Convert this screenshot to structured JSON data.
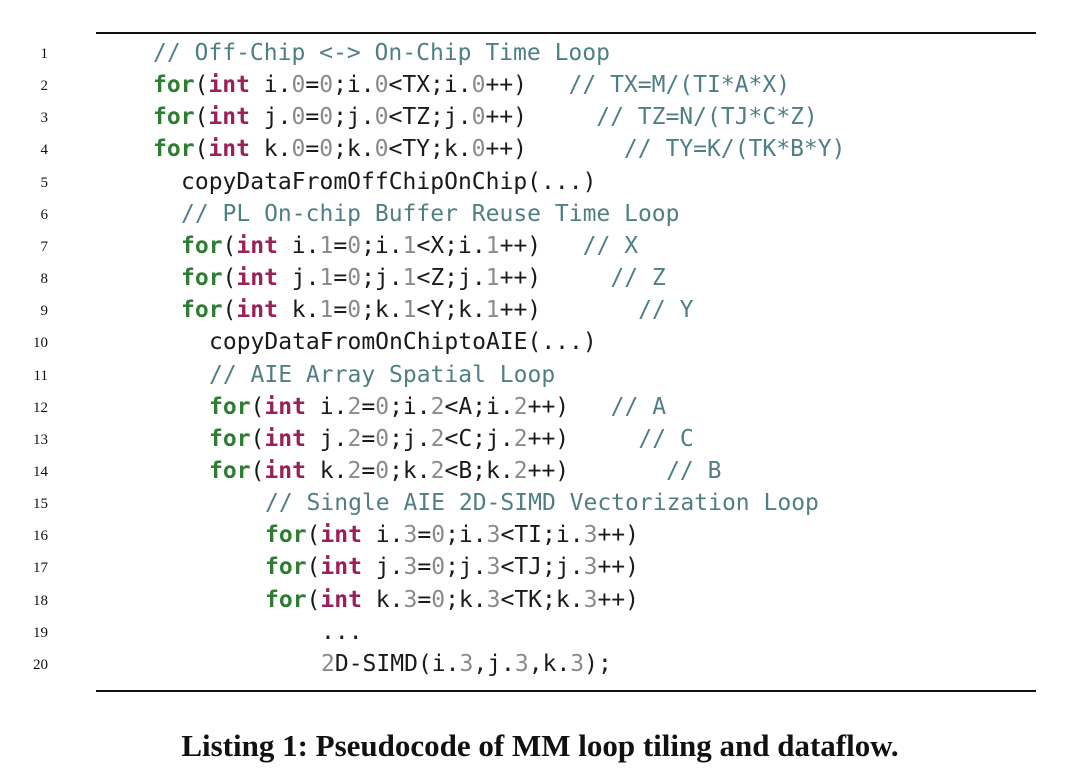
{
  "caption": "Listing 1: Pseudocode of MM loop tiling and dataflow.",
  "lines": [
    {
      "num": "1",
      "indent": 0,
      "tokens": [
        {
          "t": "// Off-Chip <-> On-Chip Time Loop",
          "c": "com"
        }
      ]
    },
    {
      "num": "2",
      "indent": 0,
      "tokens": [
        {
          "t": "for",
          "c": "kw"
        },
        {
          "t": "(",
          "c": "plain"
        },
        {
          "t": "int",
          "c": "type"
        },
        {
          "t": " i.",
          "c": "plain"
        },
        {
          "t": "0",
          "c": "num"
        },
        {
          "t": "=",
          "c": "plain"
        },
        {
          "t": "0",
          "c": "num"
        },
        {
          "t": ";i.",
          "c": "plain"
        },
        {
          "t": "0",
          "c": "num"
        },
        {
          "t": "<TX;i.",
          "c": "plain"
        },
        {
          "t": "0",
          "c": "num"
        },
        {
          "t": "++)",
          "c": "plain"
        },
        {
          "t": "   // TX=M/(TI*A*X)",
          "c": "com"
        }
      ]
    },
    {
      "num": "3",
      "indent": 0,
      "tokens": [
        {
          "t": "for",
          "c": "kw"
        },
        {
          "t": "(",
          "c": "plain"
        },
        {
          "t": "int",
          "c": "type"
        },
        {
          "t": " j.",
          "c": "plain"
        },
        {
          "t": "0",
          "c": "num"
        },
        {
          "t": "=",
          "c": "plain"
        },
        {
          "t": "0",
          "c": "num"
        },
        {
          "t": ";j.",
          "c": "plain"
        },
        {
          "t": "0",
          "c": "num"
        },
        {
          "t": "<TZ;j.",
          "c": "plain"
        },
        {
          "t": "0",
          "c": "num"
        },
        {
          "t": "++)",
          "c": "plain"
        },
        {
          "t": "     // TZ=N/(TJ*C*Z)",
          "c": "com"
        }
      ]
    },
    {
      "num": "4",
      "indent": 0,
      "tokens": [
        {
          "t": "for",
          "c": "kw"
        },
        {
          "t": "(",
          "c": "plain"
        },
        {
          "t": "int",
          "c": "type"
        },
        {
          "t": " k.",
          "c": "plain"
        },
        {
          "t": "0",
          "c": "num"
        },
        {
          "t": "=",
          "c": "plain"
        },
        {
          "t": "0",
          "c": "num"
        },
        {
          "t": ";k.",
          "c": "plain"
        },
        {
          "t": "0",
          "c": "num"
        },
        {
          "t": "<TY;k.",
          "c": "plain"
        },
        {
          "t": "0",
          "c": "num"
        },
        {
          "t": "++)",
          "c": "plain"
        },
        {
          "t": "       // TY=K/(TK*B*Y)",
          "c": "com"
        }
      ]
    },
    {
      "num": "5",
      "indent": 1,
      "tokens": [
        {
          "t": "copyDataFromOffChipOnChip(...)",
          "c": "plain"
        }
      ]
    },
    {
      "num": "6",
      "indent": 1,
      "tokens": [
        {
          "t": "// PL On-chip Buffer Reuse Time Loop",
          "c": "com"
        }
      ]
    },
    {
      "num": "7",
      "indent": 1,
      "tokens": [
        {
          "t": "for",
          "c": "kw"
        },
        {
          "t": "(",
          "c": "plain"
        },
        {
          "t": "int",
          "c": "type"
        },
        {
          "t": " i.",
          "c": "plain"
        },
        {
          "t": "1",
          "c": "num"
        },
        {
          "t": "=",
          "c": "plain"
        },
        {
          "t": "0",
          "c": "num"
        },
        {
          "t": ";i.",
          "c": "plain"
        },
        {
          "t": "1",
          "c": "num"
        },
        {
          "t": "<X;i.",
          "c": "plain"
        },
        {
          "t": "1",
          "c": "num"
        },
        {
          "t": "++)",
          "c": "plain"
        },
        {
          "t": "   // X",
          "c": "com"
        }
      ]
    },
    {
      "num": "8",
      "indent": 1,
      "tokens": [
        {
          "t": "for",
          "c": "kw"
        },
        {
          "t": "(",
          "c": "plain"
        },
        {
          "t": "int",
          "c": "type"
        },
        {
          "t": " j.",
          "c": "plain"
        },
        {
          "t": "1",
          "c": "num"
        },
        {
          "t": "=",
          "c": "plain"
        },
        {
          "t": "0",
          "c": "num"
        },
        {
          "t": ";j.",
          "c": "plain"
        },
        {
          "t": "1",
          "c": "num"
        },
        {
          "t": "<Z;j.",
          "c": "plain"
        },
        {
          "t": "1",
          "c": "num"
        },
        {
          "t": "++)",
          "c": "plain"
        },
        {
          "t": "     // Z",
          "c": "com"
        }
      ]
    },
    {
      "num": "9",
      "indent": 1,
      "tokens": [
        {
          "t": "for",
          "c": "kw"
        },
        {
          "t": "(",
          "c": "plain"
        },
        {
          "t": "int",
          "c": "type"
        },
        {
          "t": " k.",
          "c": "plain"
        },
        {
          "t": "1",
          "c": "num"
        },
        {
          "t": "=",
          "c": "plain"
        },
        {
          "t": "0",
          "c": "num"
        },
        {
          "t": ";k.",
          "c": "plain"
        },
        {
          "t": "1",
          "c": "num"
        },
        {
          "t": "<Y;k.",
          "c": "plain"
        },
        {
          "t": "1",
          "c": "num"
        },
        {
          "t": "++)",
          "c": "plain"
        },
        {
          "t": "       // Y",
          "c": "com"
        }
      ]
    },
    {
      "num": "10",
      "indent": 2,
      "tokens": [
        {
          "t": "copyDataFromOnChiptoAIE(...)",
          "c": "plain"
        }
      ]
    },
    {
      "num": "11",
      "indent": 2,
      "tokens": [
        {
          "t": "// AIE Array Spatial Loop",
          "c": "com"
        }
      ]
    },
    {
      "num": "12",
      "indent": 2,
      "tokens": [
        {
          "t": "for",
          "c": "kw"
        },
        {
          "t": "(",
          "c": "plain"
        },
        {
          "t": "int",
          "c": "type"
        },
        {
          "t": " i.",
          "c": "plain"
        },
        {
          "t": "2",
          "c": "num"
        },
        {
          "t": "=",
          "c": "plain"
        },
        {
          "t": "0",
          "c": "num"
        },
        {
          "t": ";i.",
          "c": "plain"
        },
        {
          "t": "2",
          "c": "num"
        },
        {
          "t": "<A;i.",
          "c": "plain"
        },
        {
          "t": "2",
          "c": "num"
        },
        {
          "t": "++)",
          "c": "plain"
        },
        {
          "t": "   // A",
          "c": "com"
        }
      ]
    },
    {
      "num": "13",
      "indent": 2,
      "tokens": [
        {
          "t": "for",
          "c": "kw"
        },
        {
          "t": "(",
          "c": "plain"
        },
        {
          "t": "int",
          "c": "type"
        },
        {
          "t": " j.",
          "c": "plain"
        },
        {
          "t": "2",
          "c": "num"
        },
        {
          "t": "=",
          "c": "plain"
        },
        {
          "t": "0",
          "c": "num"
        },
        {
          "t": ";j.",
          "c": "plain"
        },
        {
          "t": "2",
          "c": "num"
        },
        {
          "t": "<C;j.",
          "c": "plain"
        },
        {
          "t": "2",
          "c": "num"
        },
        {
          "t": "++)",
          "c": "plain"
        },
        {
          "t": "     // C",
          "c": "com"
        }
      ]
    },
    {
      "num": "14",
      "indent": 2,
      "tokens": [
        {
          "t": "for",
          "c": "kw"
        },
        {
          "t": "(",
          "c": "plain"
        },
        {
          "t": "int",
          "c": "type"
        },
        {
          "t": " k.",
          "c": "plain"
        },
        {
          "t": "2",
          "c": "num"
        },
        {
          "t": "=",
          "c": "plain"
        },
        {
          "t": "0",
          "c": "num"
        },
        {
          "t": ";k.",
          "c": "plain"
        },
        {
          "t": "2",
          "c": "num"
        },
        {
          "t": "<B;k.",
          "c": "plain"
        },
        {
          "t": "2",
          "c": "num"
        },
        {
          "t": "++)",
          "c": "plain"
        },
        {
          "t": "       // B",
          "c": "com"
        }
      ]
    },
    {
      "num": "15",
      "indent": 4,
      "tokens": [
        {
          "t": "// Single AIE 2D-SIMD Vectorization Loop",
          "c": "com"
        }
      ]
    },
    {
      "num": "16",
      "indent": 4,
      "tokens": [
        {
          "t": "for",
          "c": "kw"
        },
        {
          "t": "(",
          "c": "plain"
        },
        {
          "t": "int",
          "c": "type"
        },
        {
          "t": " i.",
          "c": "plain"
        },
        {
          "t": "3",
          "c": "num"
        },
        {
          "t": "=",
          "c": "plain"
        },
        {
          "t": "0",
          "c": "num"
        },
        {
          "t": ";i.",
          "c": "plain"
        },
        {
          "t": "3",
          "c": "num"
        },
        {
          "t": "<TI;i.",
          "c": "plain"
        },
        {
          "t": "3",
          "c": "num"
        },
        {
          "t": "++)",
          "c": "plain"
        }
      ]
    },
    {
      "num": "17",
      "indent": 4,
      "tokens": [
        {
          "t": "for",
          "c": "kw"
        },
        {
          "t": "(",
          "c": "plain"
        },
        {
          "t": "int",
          "c": "type"
        },
        {
          "t": " j.",
          "c": "plain"
        },
        {
          "t": "3",
          "c": "num"
        },
        {
          "t": "=",
          "c": "plain"
        },
        {
          "t": "0",
          "c": "num"
        },
        {
          "t": ";j.",
          "c": "plain"
        },
        {
          "t": "3",
          "c": "num"
        },
        {
          "t": "<TJ;j.",
          "c": "plain"
        },
        {
          "t": "3",
          "c": "num"
        },
        {
          "t": "++)",
          "c": "plain"
        }
      ]
    },
    {
      "num": "18",
      "indent": 4,
      "tokens": [
        {
          "t": "for",
          "c": "kw"
        },
        {
          "t": "(",
          "c": "plain"
        },
        {
          "t": "int",
          "c": "type"
        },
        {
          "t": " k.",
          "c": "plain"
        },
        {
          "t": "3",
          "c": "num"
        },
        {
          "t": "=",
          "c": "plain"
        },
        {
          "t": "0",
          "c": "num"
        },
        {
          "t": ";k.",
          "c": "plain"
        },
        {
          "t": "3",
          "c": "num"
        },
        {
          "t": "<TK;k.",
          "c": "plain"
        },
        {
          "t": "3",
          "c": "num"
        },
        {
          "t": "++)",
          "c": "plain"
        }
      ]
    },
    {
      "num": "19",
      "indent": 6,
      "tokens": [
        {
          "t": "...",
          "c": "plain"
        }
      ]
    },
    {
      "num": "20",
      "indent": 6,
      "tokens": [
        {
          "t": "2",
          "c": "num"
        },
        {
          "t": "D-SIMD(i.",
          "c": "plain"
        },
        {
          "t": "3",
          "c": "num"
        },
        {
          "t": ",j.",
          "c": "plain"
        },
        {
          "t": "3",
          "c": "num"
        },
        {
          "t": ",k.",
          "c": "plain"
        },
        {
          "t": "3",
          "c": "num"
        },
        {
          "t": ");",
          "c": "plain"
        }
      ]
    }
  ]
}
